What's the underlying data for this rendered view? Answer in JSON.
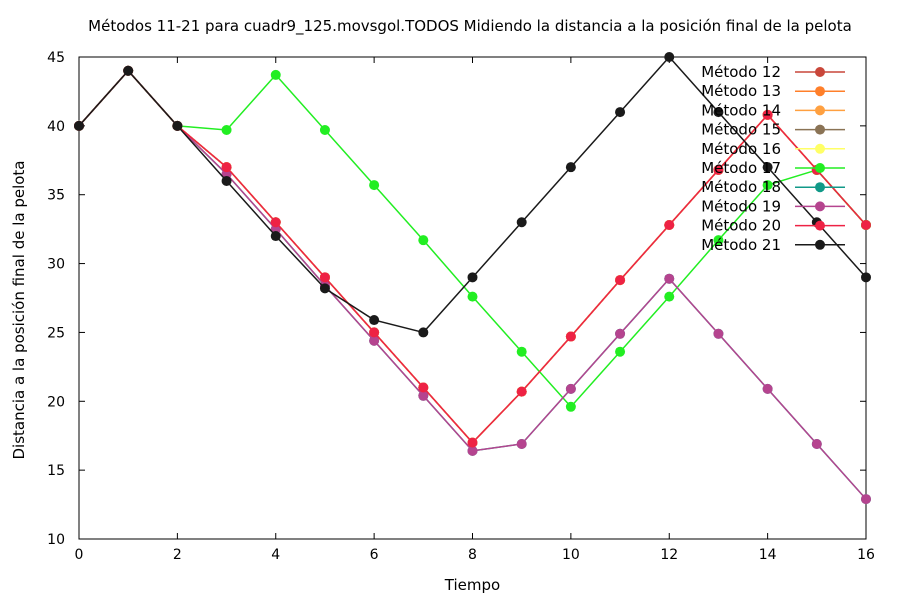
{
  "chart_data": {
    "type": "line",
    "title": "Métodos 11-21 para cuadr9_125.movsgol.TODOS Midiendo la distancia a la posición final de la pelota",
    "xlabel": "Tiempo",
    "ylabel": "Distancia a la posición final de la pelota",
    "xlim": [
      0,
      16
    ],
    "ylim": [
      10,
      45
    ],
    "xticks": [
      0,
      2,
      4,
      6,
      8,
      10,
      12,
      14,
      16
    ],
    "yticks": [
      10,
      15,
      20,
      25,
      30,
      35,
      40,
      45
    ],
    "grid": false,
    "legend_position": "top-right",
    "x": [
      0,
      1,
      2,
      3,
      4,
      5,
      6,
      7,
      8,
      9,
      10,
      11,
      12,
      13,
      14,
      15,
      16
    ],
    "series": [
      {
        "name": "Método 12",
        "color": "#c9473a",
        "values": [
          40,
          44,
          40,
          37,
          33,
          29,
          25,
          21,
          17,
          20.7,
          24.7,
          28.8,
          32.8,
          36.8,
          40.8,
          36.8,
          32.8
        ]
      },
      {
        "name": "Método 13",
        "color": "#ff7f2a",
        "values": [
          40,
          44,
          40,
          37,
          33,
          29,
          25,
          21,
          17,
          20.7,
          24.7,
          28.8,
          32.8,
          36.8,
          40.8,
          36.8,
          32.8
        ]
      },
      {
        "name": "Método 14",
        "color": "#ffa040",
        "values": [
          40,
          44,
          40,
          37,
          33,
          29,
          25,
          21,
          17,
          20.7,
          24.7,
          28.8,
          32.8,
          36.8,
          40.8,
          36.8,
          32.8
        ]
      },
      {
        "name": "Método 15",
        "color": "#8a7355",
        "values": [
          40,
          44,
          40,
          37,
          33,
          29,
          25,
          21,
          17,
          20.7,
          24.7,
          28.8,
          32.8,
          36.8,
          40.8,
          36.8,
          32.8
        ]
      },
      {
        "name": "Método 16",
        "color": "#ffff66",
        "values": [
          40,
          44,
          40,
          37,
          33,
          29,
          25,
          21,
          17,
          20.7,
          24.7,
          28.8,
          32.8,
          36.8,
          40.8,
          36.8,
          32.8
        ]
      },
      {
        "name": "Método 17",
        "color": "#22ee22",
        "values": [
          40,
          44,
          40,
          39.7,
          43.7,
          39.7,
          35.7,
          31.7,
          27.6,
          23.6,
          19.6,
          23.6,
          27.6,
          31.7,
          35.7,
          36.8,
          32.8
        ]
      },
      {
        "name": "Método 18",
        "color": "#119988",
        "values": [
          40,
          44,
          40,
          36.5,
          32.5,
          28.4,
          24.4,
          20.4,
          16.4,
          16.9,
          20.9,
          24.9,
          28.9,
          24.9,
          20.9,
          16.9,
          12.9
        ]
      },
      {
        "name": "Método 19",
        "color": "#b5448f",
        "values": [
          40,
          44,
          40,
          36.5,
          32.5,
          28.4,
          24.4,
          20.4,
          16.4,
          16.9,
          20.9,
          24.9,
          28.9,
          24.9,
          20.9,
          16.9,
          12.9
        ]
      },
      {
        "name": "Método 20",
        "color": "#ee2244",
        "values": [
          40,
          44,
          40,
          37,
          33,
          29,
          25,
          21,
          17,
          20.7,
          24.7,
          28.8,
          32.8,
          36.8,
          40.8,
          36.8,
          32.8
        ]
      },
      {
        "name": "Método 21",
        "color": "#1a1a1a",
        "values": [
          40,
          44,
          40,
          36,
          32,
          28.2,
          25.9,
          25,
          29,
          33,
          37,
          41,
          45,
          41,
          37,
          33,
          29
        ]
      }
    ]
  }
}
